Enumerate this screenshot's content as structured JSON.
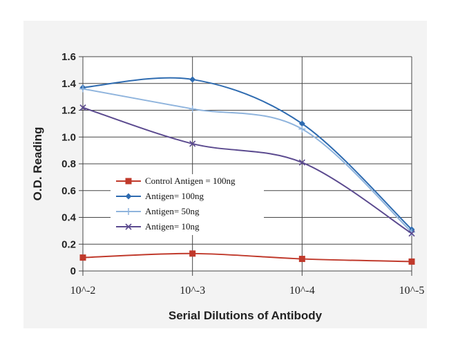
{
  "chart_data": {
    "type": "line",
    "title": "",
    "xlabel": "Serial Dilutions of Antibody",
    "ylabel": "O.D. Reading",
    "categories": [
      "10^-2",
      "10^-3",
      "10^-4",
      "10^-5"
    ],
    "ylim": [
      0,
      1.6
    ],
    "yticks": [
      "0",
      "0.2",
      "0.4",
      "0.6",
      "0.8",
      "1.0",
      "1.2",
      "1.4",
      "1.6"
    ],
    "grid": true,
    "legend_position": "center-left",
    "series": [
      {
        "name": "Control Antigen = 100ng",
        "values": [
          0.1,
          0.13,
          0.09,
          0.07
        ],
        "color": "#c0392b",
        "marker": "square"
      },
      {
        "name": "Antigen= 100ng",
        "values": [
          1.37,
          1.43,
          1.1,
          0.31
        ],
        "color": "#2e6bb0",
        "marker": "diamond"
      },
      {
        "name": "Antigen= 50ng",
        "values": [
          1.36,
          1.21,
          1.06,
          0.29
        ],
        "color": "#8fb4dd",
        "marker": "plus"
      },
      {
        "name": "Antigen= 10ng",
        "values": [
          1.22,
          0.95,
          0.81,
          0.28
        ],
        "color": "#5b4a8f",
        "marker": "x"
      }
    ]
  }
}
